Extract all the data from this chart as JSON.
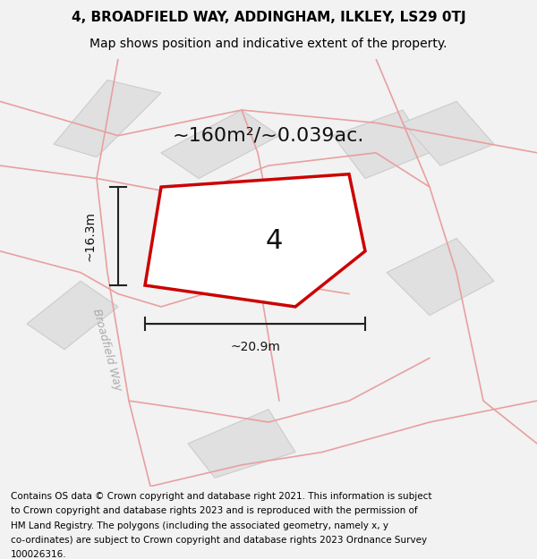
{
  "title_line1": "4, BROADFIELD WAY, ADDINGHAM, ILKLEY, LS29 0TJ",
  "title_line2": "Map shows position and indicative extent of the property.",
  "area_label": "~160m²/~0.039ac.",
  "property_number": "4",
  "dim_width": "~20.9m",
  "dim_height": "~16.3m",
  "street_label": "Broadfield Way",
  "footer_text": "Contains OS data © Crown copyright and database right 2021. This information is subject to Crown copyright and database rights 2023 and is reproduced with the permission of HM Land Registry. The polygons (including the associated geometry, namely x, y co-ordinates) are subject to Crown copyright and database rights 2023 Ordnance Survey 100026316.",
  "bg_color": "#f2f2f2",
  "map_bg_color": "#f5f5f5",
  "property_fill": "#ffffff",
  "property_edge": "#cc0000",
  "road_line_color": "#e8a0a0",
  "building_fill": "#e0e0e0",
  "building_edge": "#cccccc",
  "dim_line_color": "#222222",
  "title_fontsize": 11,
  "subtitle_fontsize": 10,
  "label_fontsize": 16,
  "street_fontsize": 9,
  "footer_fontsize": 7.5
}
